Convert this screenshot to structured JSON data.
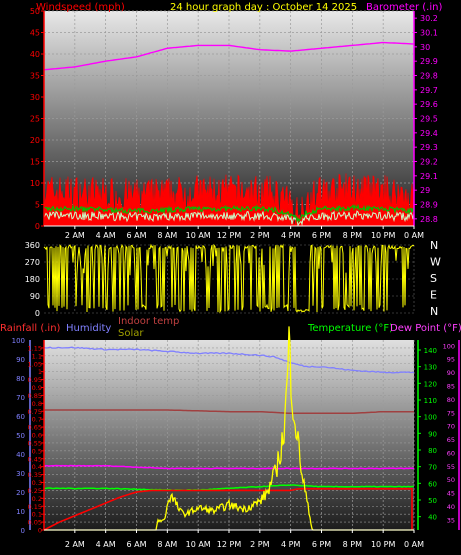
{
  "header": {
    "wind_label": "Windspeed (mph)",
    "title": "24 hour graph day : October 14 2025",
    "baro_label": "Barometer (.in)"
  },
  "lower_header": {
    "rain_label": "Rainfall (.in)",
    "humidity_label": "Humidity",
    "indoor_label": "Indoor temp",
    "solar_label": "Solar",
    "temp_label": "Temperature (°F)",
    "dew_label": "Dew Point (°F)"
  },
  "compass": [
    "N",
    "W",
    "S",
    "E",
    "N"
  ],
  "colors": {
    "wind": "#ff0000",
    "gust": "#00c000",
    "wind_light": "#c8ffc8",
    "barometer": "#ff00ff",
    "direction": "#ffff00",
    "rain": "#ff0000",
    "humidity": "#8080ff",
    "indoor": "#a04040",
    "solar": "#ffff00",
    "temperature": "#00ff00",
    "dewpoint": "#ff00ff",
    "background_top": "#d8d8d8",
    "background_bottom": "#202020"
  },
  "chart_data": [
    {
      "type": "line",
      "name": "wind-barometer",
      "x_ticks": [
        "2 AM",
        "4 AM",
        "6 AM",
        "8 AM",
        "10 AM",
        "12 PM",
        "2 PM",
        "4 PM",
        "6 PM",
        "8 PM",
        "10 PM",
        "0 AM"
      ],
      "x_range": [
        0,
        24
      ],
      "y_left": {
        "ticks": [
          "0",
          "5",
          "10",
          "15",
          "20",
          "25",
          "30",
          "35",
          "40",
          "45",
          "50"
        ],
        "range": [
          0,
          50
        ]
      },
      "y_right": {
        "ticks": [
          "28.8",
          "28.9",
          "29",
          "29.1",
          "29.2",
          "29.3",
          "29.4",
          "29.5",
          "29.6",
          "29.7",
          "29.8",
          "29.9",
          "30",
          "30.1",
          "30.2"
        ],
        "range": [
          28.75,
          30.25
        ]
      },
      "series": [
        {
          "name": "Windspeed",
          "x": [
            0,
            2,
            4,
            6,
            8,
            10,
            12,
            14,
            15,
            16,
            16.5,
            17,
            18,
            20,
            22,
            24
          ],
          "y": [
            8,
            8,
            7.5,
            7,
            7.5,
            8,
            8,
            8,
            7.5,
            5,
            3,
            6,
            8,
            8.5,
            8,
            7
          ]
        },
        {
          "name": "Barometer",
          "x": [
            0,
            2,
            4,
            6,
            8,
            10,
            12,
            14,
            16,
            18,
            20,
            22,
            24
          ],
          "y": [
            29.84,
            29.86,
            29.9,
            29.93,
            29.99,
            30.01,
            30.01,
            29.98,
            29.97,
            29.99,
            30.01,
            30.03,
            30.02
          ]
        }
      ]
    },
    {
      "type": "line",
      "name": "wind-direction",
      "y_ticks": [
        "0",
        "90",
        "180",
        "270",
        "360"
      ],
      "y_range": [
        0,
        360
      ],
      "x_range": [
        0,
        24
      ]
    },
    {
      "type": "line",
      "name": "rain-humidity-temp",
      "x_ticks": [
        "2 AM",
        "4 AM",
        "6 AM",
        "8 AM",
        "10 AM",
        "12 PM",
        "2 PM",
        "4 PM",
        "6 PM",
        "8 PM",
        "10 PM",
        "0 AM"
      ],
      "x_range": [
        0,
        24
      ],
      "y_humidity": {
        "ticks": [
          "0",
          "10",
          "20",
          "30",
          "40",
          "50",
          "60",
          "70",
          "80",
          "90",
          "100"
        ],
        "range": [
          0,
          100
        ]
      },
      "y_rain": {
        "ticks": [
          "0",
          "0.05",
          "0.1",
          "0.15",
          "0.2",
          "0.25",
          "0.3",
          "0.35",
          "0.4",
          "0.45",
          "0.5",
          "0.55",
          "0.6",
          "0.65",
          "0.7",
          "0.75",
          "0.8",
          "0.85",
          "0.9",
          "0.95",
          "1",
          "1.05",
          "1.1",
          "1.15"
        ],
        "range": [
          0,
          1.2
        ]
      },
      "y_temp": {
        "ticks": [
          "40",
          "50",
          "60",
          "70",
          "80",
          "90",
          "100",
          "110",
          "120",
          "130",
          "140"
        ],
        "range": [
          32,
          146
        ]
      },
      "y_dew": {
        "ticks": [
          "35",
          "40",
          "45",
          "50",
          "55",
          "60",
          "65",
          "70",
          "75",
          "80",
          "85",
          "90",
          "95",
          "100"
        ],
        "range": [
          31,
          102
        ]
      },
      "series": [
        {
          "name": "Humidity",
          "x": [
            0,
            2,
            4,
            6,
            8,
            10,
            12,
            14,
            15,
            16,
            17,
            18,
            20,
            22,
            24
          ],
          "y": [
            96,
            96,
            95,
            95,
            94,
            93,
            93,
            92,
            91,
            88,
            86,
            86,
            84,
            83,
            83
          ]
        },
        {
          "name": "Rainfall",
          "x": [
            0,
            1,
            2,
            3,
            4,
            5,
            6,
            7,
            8,
            16,
            16.5,
            24
          ],
          "y": [
            0,
            0.05,
            0.09,
            0.13,
            0.17,
            0.21,
            0.24,
            0.25,
            0.25,
            0.25,
            0.26,
            0.26
          ]
        },
        {
          "name": "Indoor temp",
          "x": [
            0,
            4,
            8,
            12,
            14,
            16,
            18,
            20,
            22,
            24
          ],
          "y": [
            104,
            104,
            104,
            103,
            103,
            102,
            102,
            102,
            103,
            103
          ]
        },
        {
          "name": "Temperature",
          "x": [
            0,
            4,
            8,
            10,
            12,
            14,
            16,
            18,
            20,
            22,
            24
          ],
          "y": [
            57,
            57,
            56,
            56,
            57,
            58,
            59,
            58,
            58,
            58,
            58
          ]
        },
        {
          "name": "Dew Point",
          "x": [
            0,
            4,
            8,
            12,
            16,
            20,
            24
          ],
          "y": [
            55,
            55,
            54,
            54,
            54,
            54,
            54
          ]
        }
      ]
    }
  ]
}
